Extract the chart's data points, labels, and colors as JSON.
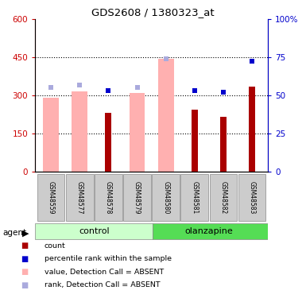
{
  "title": "GDS2608 / 1380323_at",
  "samples": [
    "GSM48559",
    "GSM48577",
    "GSM48578",
    "GSM48579",
    "GSM48580",
    "GSM48581",
    "GSM48582",
    "GSM48583"
  ],
  "count_values": [
    null,
    null,
    230,
    null,
    null,
    245,
    215,
    335
  ],
  "value_absent": [
    290,
    315,
    null,
    310,
    445,
    null,
    null,
    null
  ],
  "percentile_light": [
    330,
    340,
    null,
    330,
    445,
    null,
    null,
    null
  ],
  "percentile_dark": [
    null,
    null,
    320,
    null,
    null,
    320,
    312,
    435
  ],
  "ylim_left": [
    0,
    600
  ],
  "yticks_left": [
    0,
    150,
    300,
    450,
    600
  ],
  "ytick_labels_left": [
    "0",
    "150",
    "300",
    "450",
    "600"
  ],
  "yticks_right": [
    0,
    25,
    50,
    75,
    100
  ],
  "ytick_labels_right": [
    "0",
    "25",
    "50",
    "75",
    "100%"
  ],
  "left_axis_color": "#cc0000",
  "right_axis_color": "#0000cc",
  "bar_dark_red": "#aa0000",
  "bar_light_red": "#ffb0b0",
  "dot_dark_blue": "#0000cc",
  "dot_light_blue": "#aaaadd",
  "control_bg_light": "#ccffcc",
  "control_bg_dark": "#55dd55",
  "sample_bg": "#cccccc",
  "legend_labels": [
    "count",
    "percentile rank within the sample",
    "value, Detection Call = ABSENT",
    "rank, Detection Call = ABSENT"
  ]
}
